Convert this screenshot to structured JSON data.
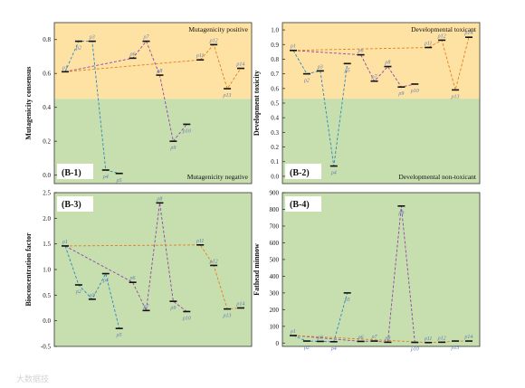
{
  "watermark": "大数据技",
  "chart_data": [
    {
      "type": "line",
      "panel_label": "(B-1)",
      "ylabel": "Mutagenicity consensus",
      "ylim": [
        -0.05,
        0.9
      ],
      "yticks": [
        "0.0",
        "0.2",
        "0.4",
        "0.6",
        "0.8"
      ],
      "ytick_values": [
        0.0,
        0.2,
        0.4,
        0.6,
        0.8
      ],
      "threshold": 0.45,
      "regions": {
        "upper_label": "Mutagenicity positive",
        "lower_label": "Mutagenicity negative",
        "upper_color": "#fde2a3",
        "lower_color": "#c7dfaf"
      },
      "points": [
        {
          "label": "ρ1",
          "x": 1,
          "y": 0.61
        },
        {
          "label": "ρ2",
          "x": 2,
          "y": 0.79
        },
        {
          "label": "ρ3",
          "x": 3,
          "y": 0.79
        },
        {
          "label": "ρ4",
          "x": 4,
          "y": 0.03
        },
        {
          "label": "ρ5",
          "x": 5,
          "y": 0.01
        },
        {
          "label": "ρ6",
          "x": 6,
          "y": 0.69
        },
        {
          "label": "ρ7",
          "x": 7,
          "y": 0.79
        },
        {
          "label": "ρ8",
          "x": 8,
          "y": 0.59
        },
        {
          "label": "ρ9",
          "x": 9,
          "y": 0.2
        },
        {
          "label": "ρ10",
          "x": 10,
          "y": 0.3
        },
        {
          "label": "ρ11",
          "x": 11,
          "y": 0.68
        },
        {
          "label": "ρ12",
          "x": 12,
          "y": 0.77
        },
        {
          "label": "ρ13",
          "x": 13,
          "y": 0.51
        },
        {
          "label": "ρ14",
          "x": 14,
          "y": 0.63
        }
      ],
      "paths": [
        {
          "color": "#2e86c1",
          "seq": [
            1,
            2,
            3,
            4,
            5
          ]
        },
        {
          "color": "#8e44ad",
          "seq": [
            1,
            6,
            7,
            8,
            9,
            10
          ]
        },
        {
          "color": "#e67e22",
          "seq": [
            1,
            11,
            12,
            13,
            14
          ]
        }
      ]
    },
    {
      "type": "line",
      "panel_label": "(B-2)",
      "ylabel": "Development toxicity",
      "ylim": [
        -0.05,
        1.05
      ],
      "yticks": [
        "0.0",
        "0.1",
        "0.2",
        "0.3",
        "0.4",
        "0.5",
        "0.6",
        "0.7",
        "0.8",
        "0.9",
        "1.0"
      ],
      "ytick_values": [
        0.0,
        0.1,
        0.2,
        0.3,
        0.4,
        0.5,
        0.6,
        0.7,
        0.8,
        0.9,
        1.0
      ],
      "threshold": 0.53,
      "regions": {
        "upper_label": "Developmental toxicant",
        "lower_label": "Developmental non-toxicant",
        "upper_color": "#fde2a3",
        "lower_color": "#c7dfaf"
      },
      "points": [
        {
          "label": "ρ1",
          "x": 1,
          "y": 0.86
        },
        {
          "label": "ρ2",
          "x": 2,
          "y": 0.7
        },
        {
          "label": "ρ3",
          "x": 3,
          "y": 0.72
        },
        {
          "label": "ρ4",
          "x": 4,
          "y": 0.07
        },
        {
          "label": "ρ5",
          "x": 5,
          "y": 0.77
        },
        {
          "label": "ρ6",
          "x": 6,
          "y": 0.83
        },
        {
          "label": "ρ7",
          "x": 7,
          "y": 0.65
        },
        {
          "label": "ρ8",
          "x": 8,
          "y": 0.75
        },
        {
          "label": "ρ9",
          "x": 9,
          "y": 0.61
        },
        {
          "label": "ρ10",
          "x": 10,
          "y": 0.63
        },
        {
          "label": "ρ11",
          "x": 11,
          "y": 0.88
        },
        {
          "label": "ρ12",
          "x": 12,
          "y": 0.93
        },
        {
          "label": "ρ13",
          "x": 13,
          "y": 0.59
        },
        {
          "label": "ρ14",
          "x": 14,
          "y": 0.95
        }
      ],
      "paths": [
        {
          "color": "#2e86c1",
          "seq": [
            1,
            2,
            3,
            4,
            5
          ]
        },
        {
          "color": "#8e44ad",
          "seq": [
            1,
            6,
            7,
            8,
            9,
            10
          ]
        },
        {
          "color": "#e67e22",
          "seq": [
            1,
            11,
            12,
            13,
            14
          ]
        }
      ]
    },
    {
      "type": "line",
      "panel_label": "(B-3)",
      "ylabel": "Bioconcentration factor",
      "ylim": [
        -0.5,
        2.5
      ],
      "yticks": [
        "-0.5",
        "0.0",
        "0.5",
        "1.0",
        "1.5",
        "2.0",
        "2.5"
      ],
      "ytick_values": [
        -0.5,
        0.0,
        0.5,
        1.0,
        1.5,
        2.0,
        2.5
      ],
      "threshold": null,
      "regions": {
        "upper_label": "",
        "lower_label": "",
        "upper_color": "#c7dfaf",
        "lower_color": "#c7dfaf"
      },
      "points": [
        {
          "label": "ρ1",
          "x": 1,
          "y": 1.46
        },
        {
          "label": "ρ2",
          "x": 2,
          "y": 0.7
        },
        {
          "label": "ρ3",
          "x": 3,
          "y": 0.42
        },
        {
          "label": "ρ4",
          "x": 4,
          "y": 0.92
        },
        {
          "label": "ρ5",
          "x": 5,
          "y": -0.15
        },
        {
          "label": "ρ6",
          "x": 6,
          "y": 0.75
        },
        {
          "label": "ρ7",
          "x": 7,
          "y": 0.2
        },
        {
          "label": "ρ8",
          "x": 8,
          "y": 2.3
        },
        {
          "label": "ρ9",
          "x": 9,
          "y": 0.38
        },
        {
          "label": "ρ10",
          "x": 10,
          "y": 0.18
        },
        {
          "label": "ρ11",
          "x": 11,
          "y": 1.48
        },
        {
          "label": "ρ12",
          "x": 12,
          "y": 1.08
        },
        {
          "label": "ρ13",
          "x": 13,
          "y": 0.23
        },
        {
          "label": "ρ14",
          "x": 14,
          "y": 0.25
        }
      ],
      "paths": [
        {
          "color": "#2e86c1",
          "seq": [
            1,
            2,
            3,
            4,
            5
          ]
        },
        {
          "color": "#8e44ad",
          "seq": [
            1,
            6,
            7,
            8,
            9,
            10
          ]
        },
        {
          "color": "#e67e22",
          "seq": [
            1,
            11,
            12,
            13,
            14
          ]
        }
      ]
    },
    {
      "type": "line",
      "panel_label": "(B-4)",
      "ylabel": "Fathead minnow",
      "ylim": [
        -20,
        900
      ],
      "yticks": [
        "0",
        "100",
        "200",
        "300",
        "400",
        "500",
        "600",
        "700",
        "800",
        "900"
      ],
      "ytick_values": [
        0,
        100,
        200,
        300,
        400,
        500,
        600,
        700,
        800,
        900
      ],
      "threshold": null,
      "regions": {
        "upper_label": "",
        "lower_label": "",
        "upper_color": "#c7dfaf",
        "lower_color": "#c7dfaf"
      },
      "points": [
        {
          "label": "ρ1",
          "x": 1,
          "y": 45
        },
        {
          "label": "ρ2",
          "x": 2,
          "y": 12
        },
        {
          "label": "ρ3",
          "x": 3,
          "y": 10
        },
        {
          "label": "ρ4",
          "x": 4,
          "y": 8
        },
        {
          "label": "ρ5",
          "x": 5,
          "y": 300
        },
        {
          "label": "ρ6",
          "x": 6,
          "y": 10
        },
        {
          "label": "ρ7",
          "x": 7,
          "y": 12
        },
        {
          "label": "ρ8",
          "x": 8,
          "y": 5
        },
        {
          "label": "ρ9",
          "x": 9,
          "y": 820
        },
        {
          "label": "ρ10",
          "x": 10,
          "y": 4
        },
        {
          "label": "ρ11",
          "x": 11,
          "y": 3
        },
        {
          "label": "ρ12",
          "x": 12,
          "y": 5
        },
        {
          "label": "ρ13",
          "x": 13,
          "y": 12
        },
        {
          "label": "ρ14",
          "x": 14,
          "y": 12
        }
      ],
      "paths": [
        {
          "color": "#2e86c1",
          "seq": [
            1,
            2,
            3,
            4,
            5
          ]
        },
        {
          "color": "#8e44ad",
          "seq": [
            1,
            6,
            7,
            8,
            9,
            10
          ]
        },
        {
          "color": "#e67e22",
          "seq": [
            1,
            11,
            12,
            13,
            14
          ]
        }
      ]
    }
  ]
}
